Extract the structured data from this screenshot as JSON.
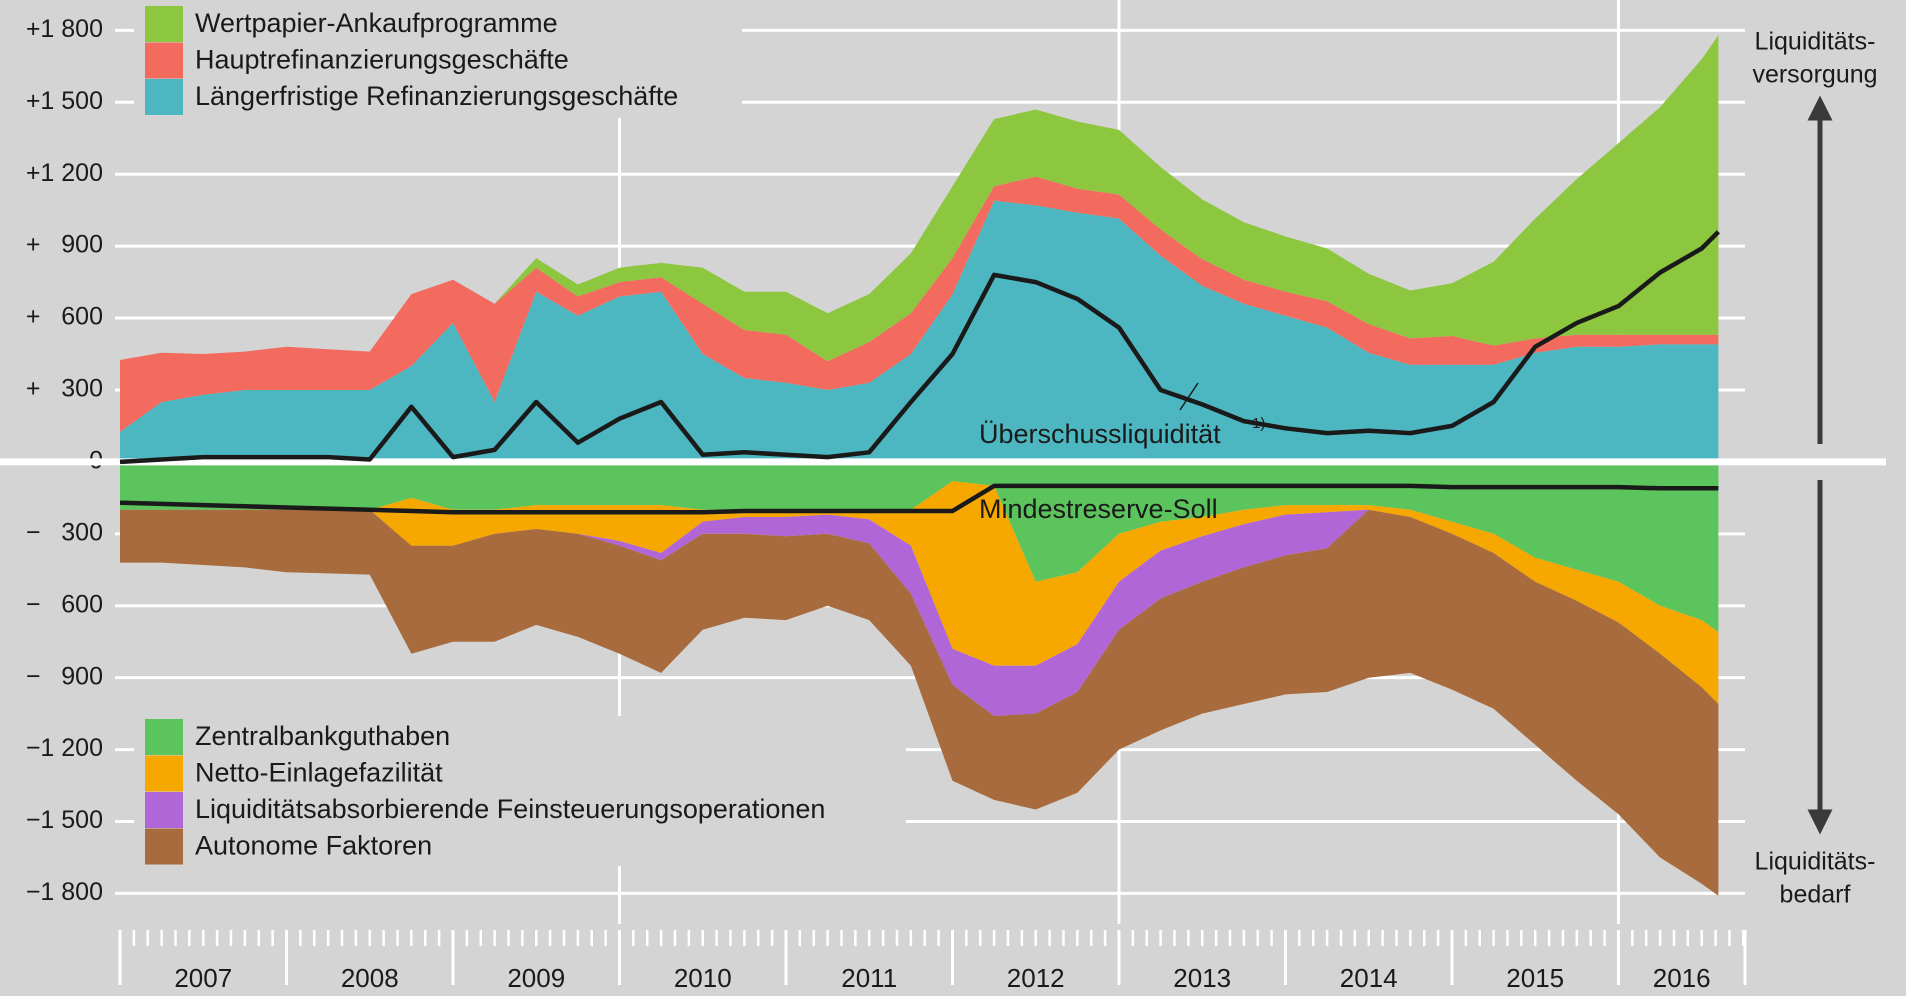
{
  "chart_data": {
    "type": "area",
    "x": [
      2007,
      2007.25,
      2007.5,
      2007.75,
      2008,
      2008.25,
      2008.5,
      2008.75,
      2009,
      2009.25,
      2009.5,
      2009.75,
      2010,
      2010.25,
      2010.5,
      2010.75,
      2011,
      2011.25,
      2011.5,
      2011.75,
      2012,
      2012.25,
      2012.5,
      2012.75,
      2013,
      2013.25,
      2013.5,
      2013.75,
      2014,
      2014.25,
      2014.5,
      2014.75,
      2015,
      2015.25,
      2015.5,
      2015.75,
      2016,
      2016.25,
      2016.5,
      2016.6
    ],
    "xlim": [
      2007,
      2016.76
    ],
    "xticks": [
      {
        "value": 2007.5,
        "label": "2007"
      },
      {
        "value": 2008.5,
        "label": "2008"
      },
      {
        "value": 2009.5,
        "label": "2009"
      },
      {
        "value": 2010.5,
        "label": "2010"
      },
      {
        "value": 2011.5,
        "label": "2011"
      },
      {
        "value": 2012.5,
        "label": "2012"
      },
      {
        "value": 2013.5,
        "label": "2013"
      },
      {
        "value": 2014.5,
        "label": "2014"
      },
      {
        "value": 2015.5,
        "label": "2015"
      },
      {
        "value": 2016.38,
        "label": "2016"
      }
    ],
    "year_boundaries": [
      2007,
      2008,
      2009,
      2010,
      2011,
      2012,
      2013,
      2014,
      2015,
      2016
    ],
    "xgrid": [
      2010,
      2013,
      2016
    ],
    "ylim": [
      -1900,
      1900
    ],
    "yticks": [
      {
        "value": 1800,
        "label": "+1 800"
      },
      {
        "value": 1500,
        "label": "+1 500"
      },
      {
        "value": 1200,
        "label": "+1 200"
      },
      {
        "value": 900,
        "label": "+   900"
      },
      {
        "value": 600,
        "label": "+   600"
      },
      {
        "value": 300,
        "label": "+   300"
      },
      0,
      {
        "value": -300,
        "label": "−   300"
      },
      {
        "value": -600,
        "label": "−   600"
      },
      {
        "value": -900,
        "label": "−   900"
      },
      {
        "value": -1200,
        "label": "−1 200"
      },
      {
        "value": -1500,
        "label": "−1 500"
      },
      {
        "value": -1800,
        "label": "−1 800"
      }
    ],
    "grid": true,
    "series": [
      {
        "name": "Längerfristige Refinanzierungsgeschäfte",
        "color": "#4db7c1",
        "kind": "area",
        "stack": "up",
        "legend": "upper-left",
        "values": [
          125,
          250,
          280,
          300,
          300,
          300,
          300,
          400,
          580,
          250,
          710,
          610,
          690,
          710,
          450,
          350,
          330,
          300,
          330,
          450,
          700,
          1090,
          1070,
          1040,
          1015,
          860,
          735,
          660,
          610,
          560,
          455,
          405,
          405,
          405,
          455,
          480,
          480,
          490,
          490,
          490
        ]
      },
      {
        "name": "Hauptrefinanzierungsgeschäfte",
        "color": "#f26b5e",
        "kind": "area",
        "stack": "up",
        "legend": "upper-left",
        "values": [
          300,
          205,
          170,
          160,
          180,
          170,
          160,
          300,
          180,
          410,
          100,
          80,
          60,
          60,
          210,
          200,
          200,
          120,
          170,
          170,
          150,
          60,
          120,
          100,
          100,
          110,
          110,
          100,
          100,
          110,
          120,
          110,
          120,
          80,
          60,
          50,
          50,
          40,
          40,
          40
        ]
      },
      {
        "name": "Wertpapier-Ankaufprogramme",
        "color": "#8dc63f",
        "kind": "area",
        "stack": "up",
        "legend": "upper-left",
        "values": [
          0,
          0,
          0,
          0,
          0,
          0,
          0,
          0,
          0,
          0,
          40,
          50,
          60,
          60,
          150,
          160,
          180,
          200,
          200,
          250,
          300,
          280,
          280,
          280,
          270,
          260,
          250,
          240,
          230,
          220,
          210,
          200,
          220,
          350,
          500,
          650,
          800,
          950,
          1150,
          1250
        ]
      },
      {
        "name": "Zentralbankguthaben",
        "color": "#5cc45c",
        "kind": "area",
        "stack": "down",
        "legend": "lower-left",
        "values": [
          -200,
          -200,
          -200,
          -200,
          -200,
          -200,
          -200,
          -150,
          -200,
          -200,
          -180,
          -180,
          -180,
          -180,
          -200,
          -200,
          -200,
          -200,
          -200,
          -200,
          -80,
          -100,
          -500,
          -460,
          -300,
          -250,
          -230,
          -200,
          -180,
          -180,
          -180,
          -200,
          -250,
          -300,
          -400,
          -450,
          -500,
          -600,
          -660,
          -710
        ]
      },
      {
        "name": "Netto-Einlagefazilität",
        "color": "#f6a800",
        "kind": "area",
        "stack": "down",
        "legend": "lower-left",
        "values": [
          0,
          0,
          0,
          0,
          0,
          0,
          0,
          -200,
          -150,
          -100,
          -100,
          -120,
          -150,
          -200,
          -50,
          -30,
          -30,
          -20,
          -40,
          -150,
          -700,
          -750,
          -350,
          -300,
          -200,
          -120,
          -80,
          -60,
          -40,
          -30,
          -20,
          -30,
          -50,
          -80,
          -100,
          -130,
          -170,
          -200,
          -280,
          -300
        ]
      },
      {
        "name": "Liquiditätsabsorbierende Feinsteuerungsoperationen",
        "color": "#b066d6",
        "kind": "area",
        "stack": "down",
        "legend": "lower-left",
        "values": [
          0,
          0,
          0,
          0,
          0,
          0,
          0,
          0,
          0,
          0,
          0,
          0,
          -20,
          -30,
          -50,
          -70,
          -80,
          -80,
          -100,
          -200,
          -150,
          -210,
          -200,
          -200,
          -200,
          -200,
          -190,
          -180,
          -170,
          -150,
          0,
          0,
          0,
          0,
          0,
          0,
          0,
          0,
          0,
          0
        ]
      },
      {
        "name": "Autonome Faktoren",
        "color": "#a86b3d",
        "kind": "area",
        "stack": "down",
        "legend": "lower-left",
        "values": [
          -220,
          -220,
          -230,
          -240,
          -260,
          -265,
          -270,
          -450,
          -400,
          -450,
          -400,
          -430,
          -450,
          -470,
          -400,
          -350,
          -350,
          -300,
          -320,
          -300,
          -400,
          -350,
          -400,
          -420,
          -500,
          -550,
          -550,
          -570,
          -580,
          -600,
          -700,
          -650,
          -650,
          -650,
          -680,
          -750,
          -800,
          -850,
          -820,
          -800
        ]
      },
      {
        "name": "Überschussliquidität",
        "color": "#1a1a1a",
        "kind": "line",
        "values": [
          0,
          10,
          20,
          20,
          20,
          20,
          10,
          230,
          20,
          50,
          250,
          80,
          180,
          250,
          30,
          40,
          30,
          20,
          40,
          250,
          450,
          780,
          750,
          680,
          560,
          300,
          240,
          170,
          140,
          120,
          130,
          120,
          150,
          250,
          480,
          580,
          650,
          790,
          890,
          960
        ]
      },
      {
        "name": "Mindestreserve-Soll",
        "color": "#1a1a1a",
        "kind": "line",
        "values": [
          -170,
          -175,
          -180,
          -185,
          -190,
          -195,
          -200,
          -205,
          -210,
          -210,
          -210,
          -210,
          -210,
          -210,
          -210,
          -205,
          -205,
          -205,
          -205,
          -205,
          -205,
          -100,
          -100,
          -100,
          -100,
          -100,
          -100,
          -100,
          -100,
          -100,
          -100,
          -100,
          -105,
          -105,
          -105,
          -105,
          -105,
          -110,
          -110,
          -110
        ]
      }
    ],
    "footnote_marker": "1)",
    "annotations": {
      "supply": [
        "Liquiditäts-",
        "versorgung"
      ],
      "demand": [
        "Liquiditäts-",
        "bedarf"
      ]
    }
  }
}
